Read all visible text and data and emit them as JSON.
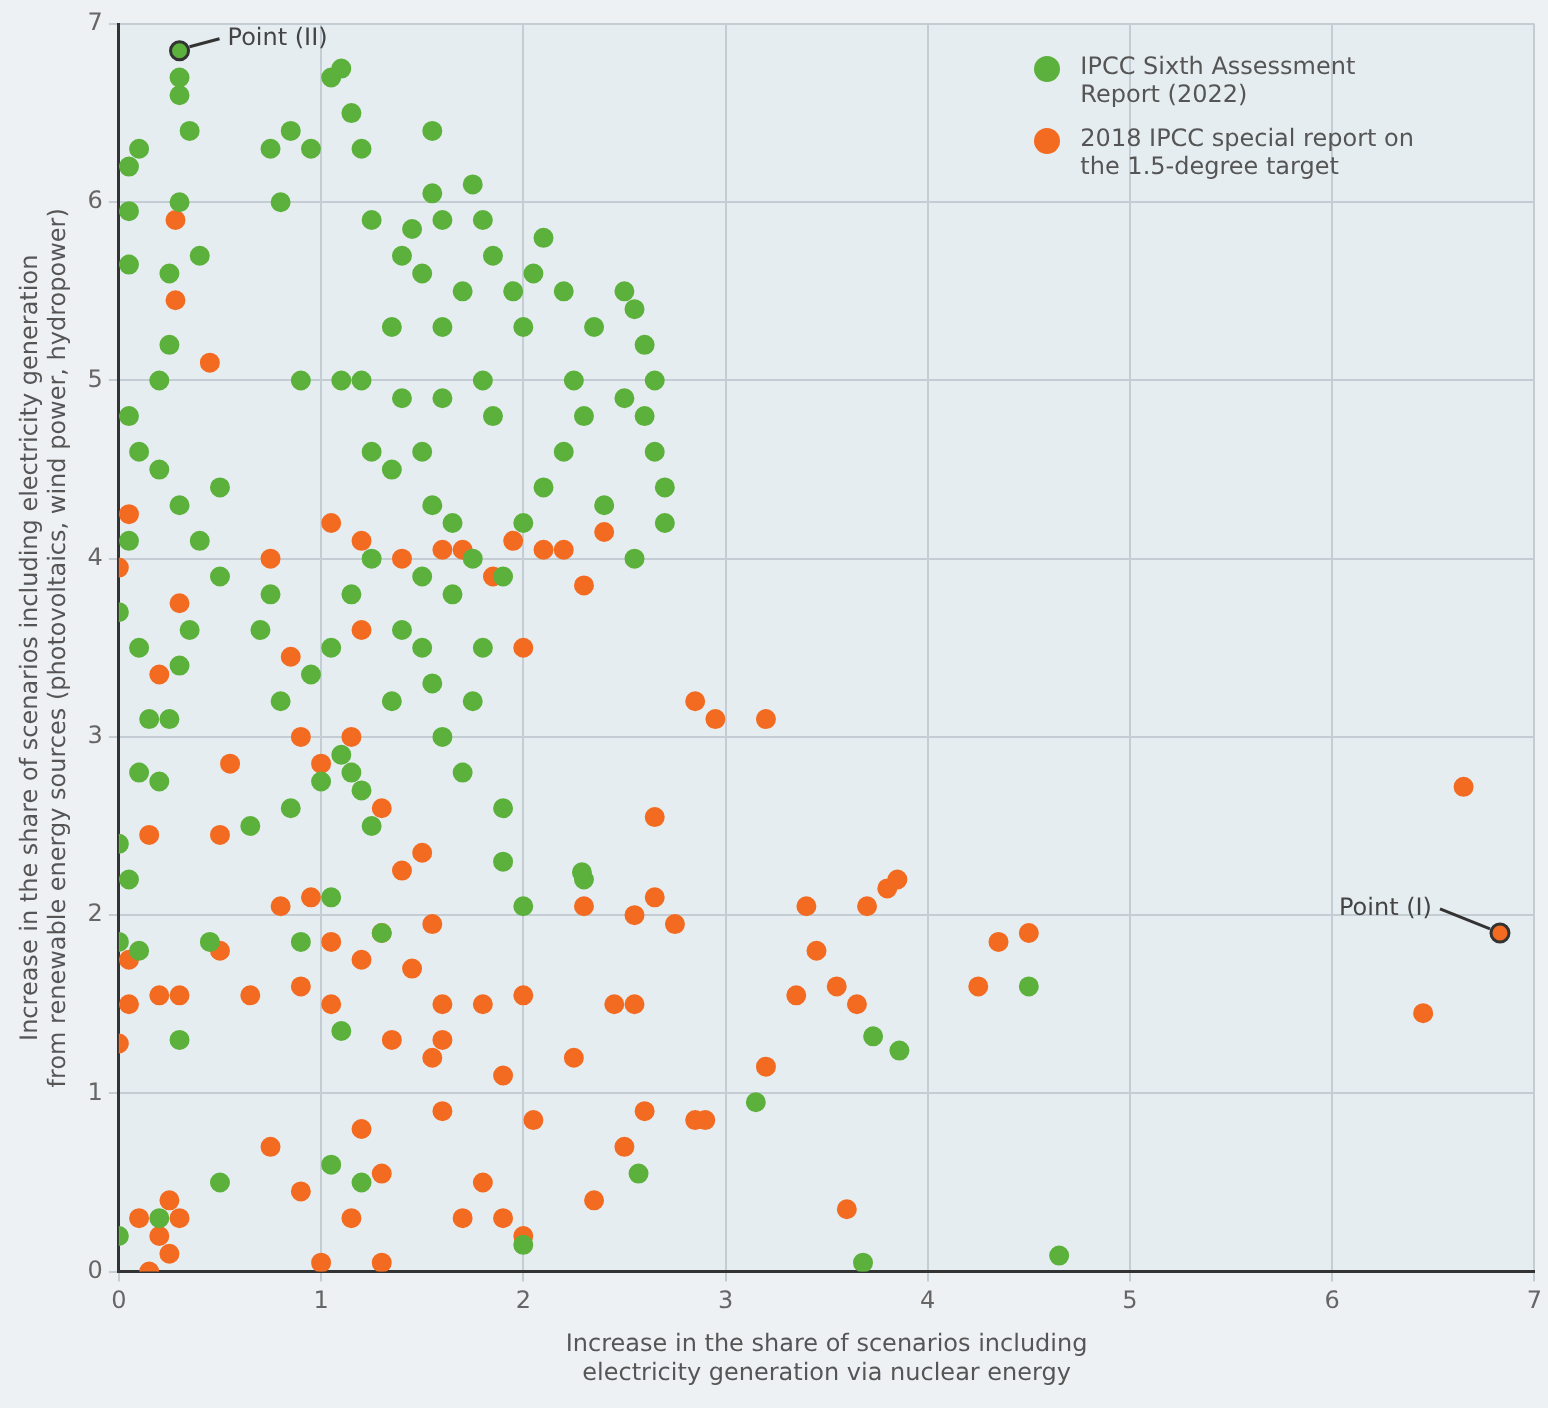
{
  "chart_data": {
    "type": "scatter",
    "xlabel": "Increase in the share of scenarios including electricity generation via nuclear energy",
    "ylabel": "Increase in the share of scenarios including electricity generation from renewable energy sources (photovoltaics, wind power, hydropower)",
    "xlim": [
      0,
      7
    ],
    "ylim": [
      0,
      7
    ],
    "xticks": [
      0,
      1,
      2,
      3,
      4,
      5,
      6,
      7
    ],
    "yticks": [
      0,
      1,
      2,
      3,
      4,
      5,
      6,
      7
    ],
    "grid": true,
    "legend": "top right",
    "marker": "circle",
    "annotations": [
      {
        "text": "Point (II)",
        "x": 0.3,
        "y": 6.85
      },
      {
        "text": "Point (I)",
        "x": 6.83,
        "y": 1.9
      }
    ],
    "series": [
      {
        "name": "IPCC Sixth Assessment Report (2022)",
        "color": "#5bb13b",
        "x": [
          0.3,
          0.3,
          0.3,
          0.35,
          0.1,
          0.05,
          0.3,
          0.05,
          0.4,
          0.25,
          0.05,
          0.25,
          0.2,
          0.05,
          0.1,
          0.2,
          0.3,
          0.05,
          0.0,
          0.1,
          0.3,
          0.5,
          0.4,
          0.5,
          0.35,
          0.15,
          0.25,
          0.1,
          0.2,
          0.0,
          0.05,
          0.0,
          0.1,
          0.0,
          0.2,
          0.5,
          0.3,
          0.45,
          0.65,
          0.85,
          1.0,
          1.1,
          1.15,
          1.2,
          1.25,
          1.05,
          0.9,
          1.1,
          1.05,
          1.2,
          0.85,
          0.75,
          0.8,
          0.95,
          1.05,
          1.1,
          1.15,
          1.2,
          1.25,
          1.45,
          1.55,
          1.55,
          1.6,
          1.75,
          1.8,
          1.85,
          1.95,
          2.05,
          2.1,
          2.0,
          1.7,
          1.5,
          1.35,
          1.4,
          1.6,
          1.8,
          1.85,
          1.6,
          1.4,
          1.2,
          1.1,
          0.9,
          1.25,
          1.35,
          1.5,
          1.55,
          1.65,
          1.75,
          1.9,
          2.0,
          2.1,
          2.2,
          2.3,
          2.35,
          2.2,
          2.25,
          2.4,
          2.5,
          2.55,
          2.6,
          2.65,
          2.6,
          2.65,
          2.7,
          2.7,
          2.55,
          2.5,
          1.25,
          1.15,
          1.05,
          0.95,
          0.8,
          0.7,
          0.75,
          1.5,
          1.55,
          1.6,
          1.7,
          1.75,
          1.8,
          1.65,
          1.5,
          1.4,
          1.35,
          1.9,
          1.9,
          2.0,
          2.3,
          2.29,
          2.57,
          2.0,
          1.3,
          3.15,
          3.73,
          3.86,
          4.5,
          3.68,
          4.65
        ],
        "values": [
          6.85,
          6.7,
          6.6,
          6.4,
          6.3,
          6.2,
          6.0,
          5.95,
          5.7,
          5.6,
          5.65,
          5.2,
          5.0,
          4.8,
          4.6,
          4.5,
          4.3,
          4.1,
          3.7,
          3.5,
          3.4,
          4.4,
          4.1,
          3.9,
          3.6,
          3.1,
          3.1,
          2.8,
          2.75,
          2.4,
          2.2,
          1.85,
          1.8,
          0.2,
          0.3,
          0.5,
          1.3,
          1.85,
          2.5,
          2.6,
          2.75,
          2.9,
          2.8,
          2.7,
          2.5,
          2.1,
          1.85,
          1.35,
          0.6,
          0.5,
          6.4,
          6.3,
          6.0,
          6.3,
          6.7,
          6.75,
          6.5,
          6.3,
          5.9,
          5.85,
          6.4,
          6.05,
          5.9,
          6.1,
          5.9,
          5.7,
          5.5,
          5.6,
          5.8,
          5.3,
          5.5,
          5.6,
          5.3,
          5.7,
          5.3,
          5.0,
          4.8,
          4.9,
          4.9,
          5.0,
          5.0,
          5.0,
          4.6,
          4.5,
          4.6,
          4.3,
          4.2,
          4.0,
          3.9,
          4.2,
          4.4,
          4.6,
          4.8,
          5.3,
          5.5,
          5.0,
          4.3,
          5.5,
          5.4,
          5.2,
          5.0,
          4.8,
          4.6,
          4.4,
          4.2,
          4.0,
          4.9,
          4.0,
          3.8,
          3.5,
          3.35,
          3.2,
          3.6,
          3.8,
          3.5,
          3.3,
          3.0,
          2.8,
          3.2,
          3.5,
          3.8,
          3.9,
          3.6,
          3.2,
          2.6,
          2.3,
          2.05,
          2.2,
          2.24,
          0.55,
          0.15,
          1.9,
          0.95,
          1.32,
          1.24,
          1.6,
          0.05,
          0.09
        ]
      },
      {
        "name": "2018 IPCC special report on the 1.5-degree target",
        "color": "#f26b21",
        "x": [
          0.28,
          0.28,
          0.45,
          0.05,
          0.3,
          0.0,
          0.2,
          0.55,
          0.15,
          0.5,
          0.75,
          0.85,
          0.9,
          1.0,
          1.2,
          1.15,
          1.3,
          0.95,
          0.8,
          1.05,
          1.2,
          1.3,
          1.4,
          1.5,
          1.55,
          1.45,
          1.6,
          1.55,
          1.35,
          1.05,
          0.9,
          0.65,
          0.5,
          0.3,
          0.05,
          0.05,
          0.0,
          0.2,
          0.1,
          0.2,
          0.25,
          0.15,
          0.3,
          0.25,
          0.75,
          0.9,
          1.2,
          1.3,
          1.15,
          1.0,
          1.3,
          1.6,
          1.7,
          1.8,
          1.9,
          2.0,
          2.05,
          2.25,
          2.35,
          2.5,
          2.6,
          2.85,
          2.9,
          2.0,
          1.8,
          1.6,
          1.9,
          2.3,
          2.55,
          2.45,
          2.65,
          2.65,
          2.75,
          2.55,
          2.85,
          2.95,
          3.2,
          2.0,
          1.85,
          2.3,
          2.4,
          2.2,
          2.1,
          1.7,
          1.6,
          1.2,
          1.05,
          1.4,
          1.95,
          3.2,
          3.35,
          3.4,
          3.55,
          3.65,
          3.7,
          3.8,
          3.85,
          3.45,
          3.6,
          4.25,
          4.35,
          4.5,
          6.45,
          6.65,
          6.83
        ],
        "values": [
          5.9,
          5.45,
          5.1,
          4.25,
          3.75,
          3.95,
          3.35,
          2.85,
          2.45,
          2.45,
          4.0,
          3.45,
          3.0,
          2.85,
          3.6,
          3.0,
          2.6,
          2.1,
          2.05,
          1.85,
          1.75,
          1.9,
          2.25,
          2.35,
          1.95,
          1.7,
          1.5,
          1.2,
          1.3,
          1.5,
          1.6,
          1.55,
          1.8,
          1.55,
          1.75,
          1.5,
          1.28,
          1.55,
          0.3,
          0.2,
          0.4,
          0.0,
          0.3,
          0.1,
          0.7,
          0.45,
          0.8,
          0.55,
          0.3,
          0.05,
          0.05,
          0.9,
          0.3,
          0.5,
          0.3,
          0.2,
          0.85,
          1.2,
          0.4,
          0.7,
          0.9,
          0.85,
          0.85,
          1.55,
          1.5,
          1.3,
          1.1,
          2.05,
          2.0,
          1.5,
          2.55,
          2.1,
          1.95,
          1.5,
          3.2,
          3.1,
          3.1,
          3.5,
          3.9,
          3.85,
          4.15,
          4.05,
          4.05,
          4.05,
          4.05,
          4.1,
          4.2,
          4.0,
          4.1,
          1.15,
          1.55,
          2.05,
          1.6,
          1.5,
          2.05,
          2.15,
          2.2,
          1.8,
          0.35,
          1.6,
          1.85,
          1.9,
          1.45,
          2.72,
          1.9
        ]
      }
    ]
  }
}
